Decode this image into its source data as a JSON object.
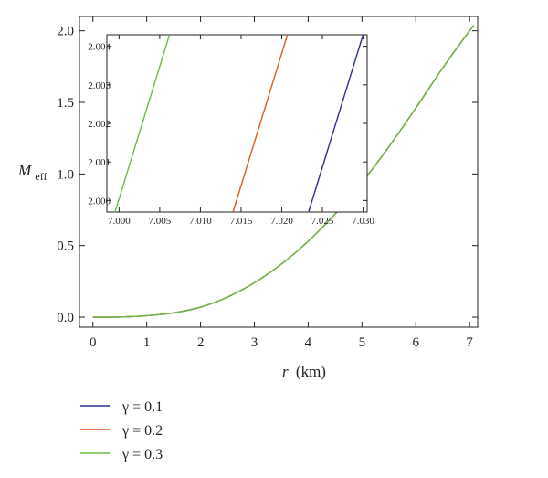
{
  "chart_data": [
    {
      "type": "line",
      "title": "",
      "xlabel": {
        "symbol": "r",
        "unit": "(km)"
      },
      "ylabel": {
        "symbol": "M",
        "subscript": "eff"
      },
      "xlim": [
        -0.25,
        7.15
      ],
      "ylim": [
        -0.07,
        2.1
      ],
      "xticks": [
        0,
        1,
        2,
        3,
        4,
        5,
        6,
        7
      ],
      "xtick_labels": [
        "0",
        "1",
        "2",
        "3",
        "4",
        "5",
        "6",
        "7"
      ],
      "yticks": [
        0.0,
        0.5,
        1.0,
        1.5,
        2.0
      ],
      "ytick_labels": [
        "0.0",
        "0.5",
        "1.0",
        "1.5",
        "2.0"
      ],
      "grid": false,
      "legend_position": "below",
      "series": [
        {
          "name": "γ = 0.1",
          "color": "#2e3192",
          "x": [
            0,
            0.5,
            1,
            1.5,
            2,
            2.5,
            3,
            3.5,
            4,
            4.5,
            5,
            5.5,
            6,
            6.5,
            7,
            7.08
          ],
          "y": [
            0,
            0.001,
            0.01,
            0.03,
            0.07,
            0.14,
            0.24,
            0.37,
            0.53,
            0.72,
            0.94,
            1.19,
            1.46,
            1.74,
            2.0,
            2.03
          ]
        },
        {
          "name": "γ = 0.2",
          "color": "#e05a1c",
          "x": [
            0,
            0.5,
            1,
            1.5,
            2,
            2.5,
            3,
            3.5,
            4,
            4.5,
            5,
            5.5,
            6,
            6.5,
            7,
            7.08
          ],
          "y": [
            0,
            0.001,
            0.01,
            0.03,
            0.07,
            0.14,
            0.24,
            0.37,
            0.53,
            0.72,
            0.94,
            1.19,
            1.46,
            1.74,
            2.0,
            2.035
          ]
        },
        {
          "name": "γ = 0.3",
          "color": "#6abd45",
          "x": [
            0,
            0.5,
            1,
            1.5,
            2,
            2.5,
            3,
            3.5,
            4,
            4.5,
            5,
            5.5,
            6,
            6.5,
            7,
            7.08
          ],
          "y": [
            0,
            0.001,
            0.01,
            0.03,
            0.07,
            0.14,
            0.24,
            0.37,
            0.53,
            0.72,
            0.94,
            1.19,
            1.46,
            1.74,
            2.0,
            2.04
          ]
        }
      ]
    },
    {
      "type": "line",
      "title": "",
      "xlim": [
        6.9985,
        7.0305
      ],
      "ylim": [
        1.9997,
        2.0043
      ],
      "xticks": [
        7.0,
        7.005,
        7.01,
        7.015,
        7.02,
        7.025,
        7.03
      ],
      "xtick_labels": [
        "7.000",
        "7.005",
        "7.010",
        "7.015",
        "7.020",
        "7.025",
        "7.030"
      ],
      "yticks": [
        2.0,
        2.001,
        2.002,
        2.003,
        2.004
      ],
      "ytick_labels": [
        "2.000",
        "2.001",
        "2.002",
        "2.003",
        "2.004"
      ],
      "grid": false,
      "series": [
        {
          "name": "γ = 0.1",
          "color": "#2e3192",
          "x": [
            7.0233,
            7.03
          ],
          "y": [
            1.9997,
            2.0043
          ]
        },
        {
          "name": "γ = 0.2",
          "color": "#e05a1c",
          "x": [
            7.014,
            7.0207
          ],
          "y": [
            1.9997,
            2.0043
          ]
        },
        {
          "name": "γ = 0.3",
          "color": "#6abd45",
          "x": [
            6.9995,
            7.0062
          ],
          "y": [
            1.9997,
            2.0043
          ]
        }
      ]
    }
  ]
}
